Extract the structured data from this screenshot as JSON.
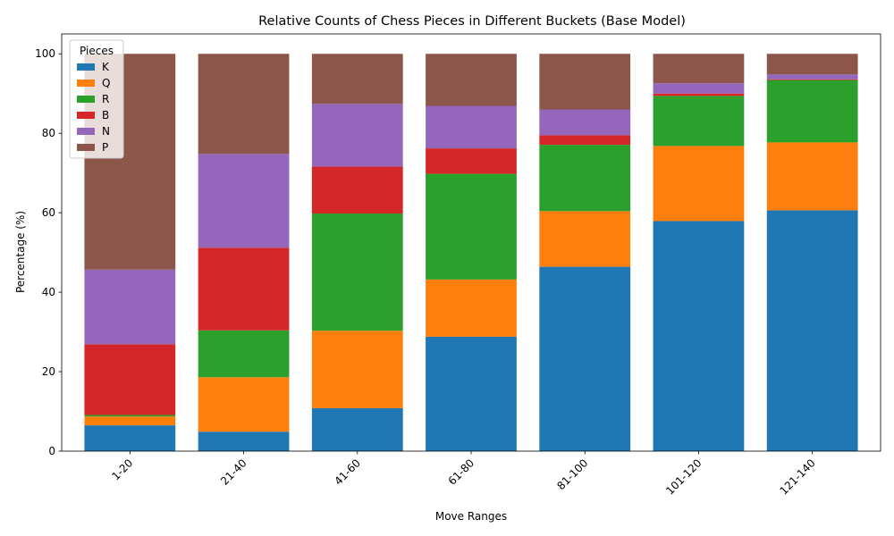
{
  "chart_data": {
    "type": "bar",
    "stacked": true,
    "title": "Relative Counts of Chess Pieces in Different Buckets (Base Model)",
    "xlabel": "Move Ranges",
    "ylabel": "Percentage (%)",
    "ylim": [
      0,
      105
    ],
    "yticks": [
      0,
      20,
      40,
      60,
      80,
      100
    ],
    "grid": false,
    "legend": {
      "title": "Pieces",
      "placement": "top-left"
    },
    "categories": [
      "1-20",
      "21-40",
      "41-60",
      "61-80",
      "81-100",
      "101-120",
      "121-140"
    ],
    "series": [
      {
        "name": "K",
        "color": "#1f77b4",
        "values": [
          6.5,
          4.9,
          10.8,
          28.8,
          46.4,
          57.9,
          60.6
        ]
      },
      {
        "name": "Q",
        "color": "#ff7f0e",
        "values": [
          2.2,
          13.7,
          19.5,
          14.4,
          14.0,
          18.9,
          17.1
        ]
      },
      {
        "name": "R",
        "color": "#2ca02c",
        "values": [
          0.4,
          11.8,
          29.5,
          26.6,
          16.7,
          12.6,
          15.7
        ]
      },
      {
        "name": "B",
        "color": "#d62728",
        "values": [
          17.8,
          20.8,
          11.8,
          6.4,
          2.4,
          0.6,
          0.2
        ]
      },
      {
        "name": "N",
        "color": "#9467bd",
        "values": [
          18.8,
          23.6,
          15.8,
          10.7,
          6.5,
          2.6,
          1.2
        ]
      },
      {
        "name": "P",
        "color": "#8c564b",
        "values": [
          54.3,
          25.2,
          12.6,
          13.1,
          14.0,
          7.4,
          5.2
        ]
      }
    ]
  }
}
